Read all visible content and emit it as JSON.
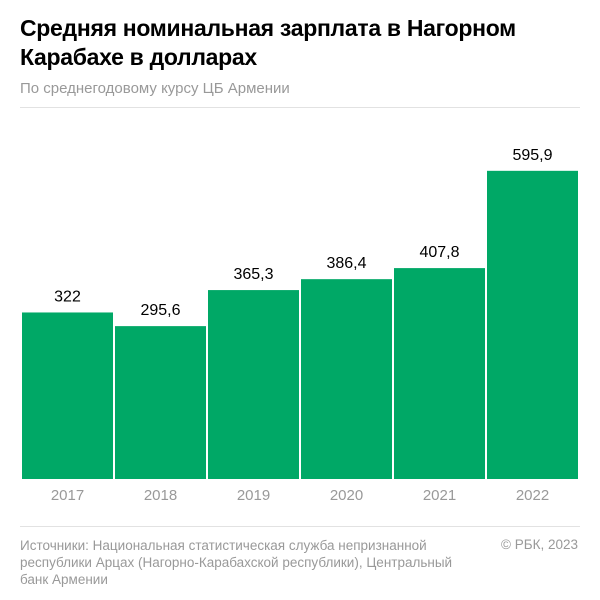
{
  "title": "Средняя номинальная зарплата в Нагорном Карабахе в долларах",
  "subtitle": "По среднегодовому курсу ЦБ Армении",
  "source": "Источники: Национальная статистическая служба непризнанной республики Арцах (Нагорно-Карабахской республики), Центральный банк Армении",
  "copyright": "© РБК, 2023",
  "chart_data": {
    "type": "bar",
    "title": "Средняя номинальная зарплата в Нагорном Карабахе в долларах",
    "subtitle": "По среднегодовому курсу ЦБ Армении",
    "categories": [
      "2017",
      "2018",
      "2019",
      "2020",
      "2021",
      "2022"
    ],
    "values": [
      322,
      295.6,
      365.3,
      386.4,
      407.8,
      595.9
    ],
    "labels": [
      "322",
      "295,6",
      "365,3",
      "386,4",
      "407,8",
      "595,9"
    ],
    "ylim": [
      0,
      600
    ],
    "grid": false,
    "bar_color": "#00a866"
  }
}
